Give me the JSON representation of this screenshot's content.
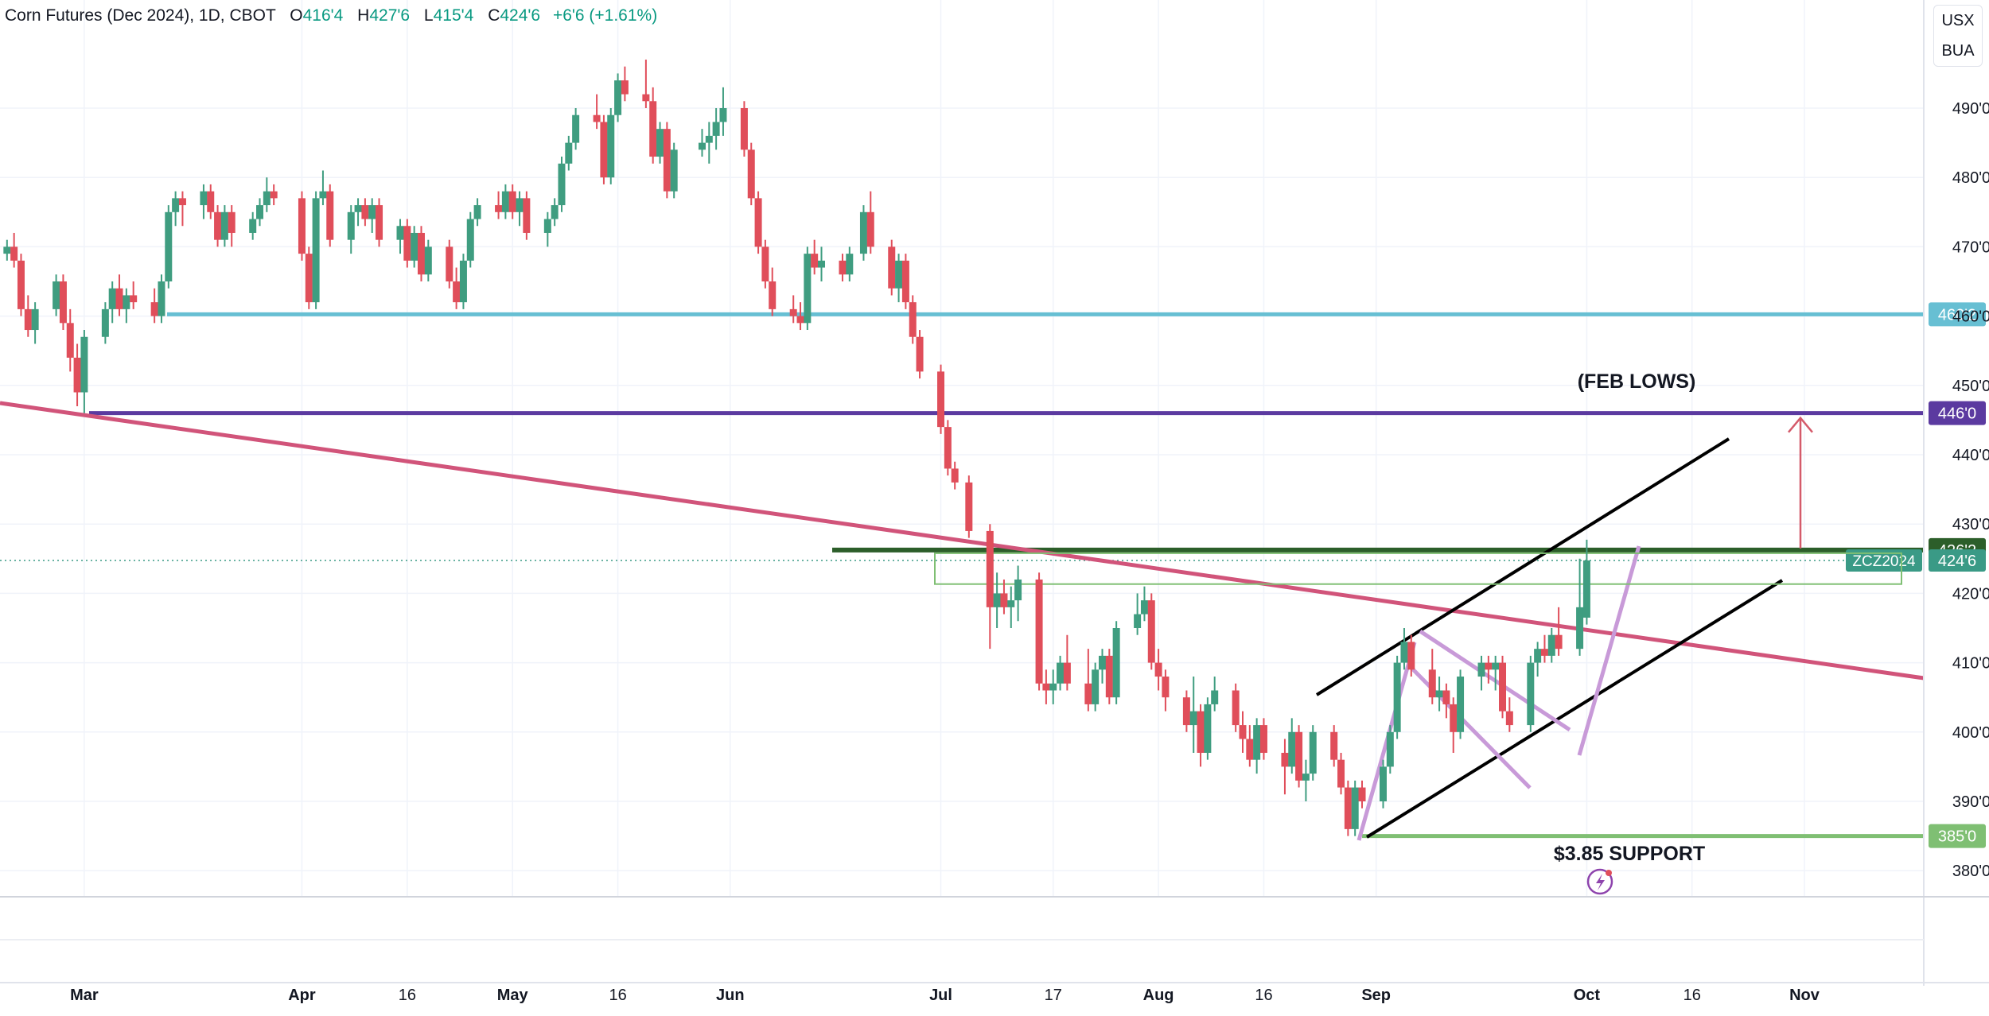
{
  "header": {
    "symbol": "Corn Futures (Dec 2024), 1D, CBOT",
    "open_label": "O",
    "open": "416'4",
    "high_label": "H",
    "high": "427'6",
    "low_label": "L",
    "low": "415'4",
    "close_label": "C",
    "close": "424'6",
    "change": "+6'6 (+1.61%)"
  },
  "corner_buttons": [
    "USX",
    "BUA"
  ],
  "chart_data": {
    "type": "candlestick",
    "price_axis": {
      "ticks": [
        380,
        390,
        400,
        410,
        420,
        430,
        440,
        450,
        460,
        470,
        480,
        490
      ],
      "tick_labels": [
        "380'0",
        "390'0",
        "400'0",
        "410'0",
        "420'0",
        "430'0",
        "440'0",
        "450'0",
        "460'0",
        "470'0",
        "480'0",
        "490'0"
      ],
      "range": [
        377,
        500
      ]
    },
    "time_axis": {
      "range": [
        "2024-02-18",
        "2024-11-18"
      ],
      "ticks": [
        {
          "date": "2024-03-01",
          "label": "Mar",
          "bold": true
        },
        {
          "date": "2024-04-01",
          "label": "Apr",
          "bold": true
        },
        {
          "date": "2024-04-16",
          "label": "16",
          "bold": false
        },
        {
          "date": "2024-05-01",
          "label": "May",
          "bold": true
        },
        {
          "date": "2024-05-16",
          "label": "16",
          "bold": false
        },
        {
          "date": "2024-06-01",
          "label": "Jun",
          "bold": true
        },
        {
          "date": "2024-07-01",
          "label": "Jul",
          "bold": true
        },
        {
          "date": "2024-07-17",
          "label": "17",
          "bold": false
        },
        {
          "date": "2024-08-01",
          "label": "Aug",
          "bold": true
        },
        {
          "date": "2024-08-16",
          "label": "16",
          "bold": false
        },
        {
          "date": "2024-09-01",
          "label": "Sep",
          "bold": true
        },
        {
          "date": "2024-10-01",
          "label": "Oct",
          "bold": true
        },
        {
          "date": "2024-10-16",
          "label": "16",
          "bold": false
        },
        {
          "date": "2024-11-01",
          "label": "Nov",
          "bold": true
        }
      ]
    },
    "candles": [
      [
        "2024-02-19",
        469,
        471,
        468,
        470
      ],
      [
        "2024-02-20",
        470,
        472,
        467,
        468
      ],
      [
        "2024-02-21",
        468,
        469,
        460,
        461
      ],
      [
        "2024-02-22",
        461,
        463,
        457,
        458
      ],
      [
        "2024-02-23",
        458,
        462,
        456,
        461
      ],
      [
        "2024-02-26",
        461,
        466,
        460,
        465
      ],
      [
        "2024-02-27",
        465,
        466,
        458,
        459
      ],
      [
        "2024-02-28",
        459,
        461,
        452,
        454
      ],
      [
        "2024-02-29",
        454,
        456,
        447,
        449
      ],
      [
        "2024-03-01",
        449,
        458,
        446,
        457
      ],
      [
        "2024-03-04",
        457,
        462,
        456,
        461
      ],
      [
        "2024-03-05",
        461,
        465,
        459,
        464
      ],
      [
        "2024-03-06",
        464,
        466,
        460,
        461
      ],
      [
        "2024-03-07",
        461,
        464,
        459,
        463
      ],
      [
        "2024-03-08",
        463,
        465,
        461,
        462
      ],
      [
        "2024-03-11",
        462,
        464,
        459,
        460
      ],
      [
        "2024-03-12",
        460,
        466,
        459,
        465
      ],
      [
        "2024-03-13",
        465,
        476,
        464,
        475
      ],
      [
        "2024-03-14",
        475,
        478,
        473,
        477
      ],
      [
        "2024-03-15",
        477,
        478,
        473,
        476
      ],
      [
        "2024-03-18",
        476,
        479,
        474,
        478
      ],
      [
        "2024-03-19",
        478,
        479,
        474,
        475
      ],
      [
        "2024-03-20",
        475,
        476,
        470,
        471
      ],
      [
        "2024-03-21",
        471,
        476,
        470,
        475
      ],
      [
        "2024-03-22",
        475,
        476,
        470,
        472
      ],
      [
        "2024-03-25",
        472,
        475,
        471,
        474
      ],
      [
        "2024-03-26",
        474,
        477,
        473,
        476
      ],
      [
        "2024-03-27",
        476,
        480,
        475,
        478
      ],
      [
        "2024-03-28",
        478,
        479,
        476,
        477
      ],
      [
        "2024-04-01",
        477,
        478,
        468,
        469
      ],
      [
        "2024-04-02",
        469,
        470,
        461,
        462
      ],
      [
        "2024-04-03",
        462,
        478,
        461,
        477
      ],
      [
        "2024-04-04",
        477,
        481,
        476,
        478
      ],
      [
        "2024-04-05",
        478,
        479,
        470,
        471
      ],
      [
        "2024-04-08",
        471,
        476,
        469,
        475
      ],
      [
        "2024-04-09",
        475,
        477,
        473,
        476
      ],
      [
        "2024-04-10",
        476,
        477,
        473,
        474
      ],
      [
        "2024-04-11",
        474,
        477,
        472,
        476
      ],
      [
        "2024-04-12",
        476,
        477,
        470,
        471
      ],
      [
        "2024-04-15",
        471,
        474,
        469,
        473
      ],
      [
        "2024-04-16",
        473,
        474,
        467,
        468
      ],
      [
        "2024-04-17",
        468,
        473,
        467,
        472
      ],
      [
        "2024-04-18",
        472,
        473,
        465,
        466
      ],
      [
        "2024-04-19",
        466,
        471,
        465,
        470
      ],
      [
        "2024-04-22",
        470,
        471,
        464,
        465
      ],
      [
        "2024-04-23",
        465,
        467,
        461,
        462
      ],
      [
        "2024-04-24",
        462,
        469,
        461,
        468
      ],
      [
        "2024-04-25",
        468,
        475,
        467,
        474
      ],
      [
        "2024-04-26",
        474,
        477,
        473,
        476
      ],
      [
        "2024-04-29",
        476,
        478,
        474,
        475
      ],
      [
        "2024-04-30",
        475,
        479,
        474,
        478
      ],
      [
        "2024-05-01",
        478,
        479,
        474,
        475
      ],
      [
        "2024-05-02",
        475,
        478,
        473,
        477
      ],
      [
        "2024-05-03",
        477,
        478,
        471,
        472
      ],
      [
        "2024-05-06",
        472,
        475,
        470,
        474
      ],
      [
        "2024-05-07",
        474,
        477,
        473,
        476
      ],
      [
        "2024-05-08",
        476,
        483,
        475,
        482
      ],
      [
        "2024-05-09",
        482,
        486,
        481,
        485
      ],
      [
        "2024-05-10",
        485,
        490,
        484,
        489
      ],
      [
        "2024-05-13",
        489,
        492,
        487,
        488
      ],
      [
        "2024-05-14",
        488,
        489,
        479,
        480
      ],
      [
        "2024-05-15",
        480,
        490,
        479,
        489
      ],
      [
        "2024-05-16",
        489,
        495,
        488,
        494
      ],
      [
        "2024-05-17",
        494,
        496,
        491,
        492
      ],
      [
        "2024-05-20",
        492,
        497,
        490,
        491
      ],
      [
        "2024-05-21",
        491,
        493,
        482,
        483
      ],
      [
        "2024-05-22",
        483,
        488,
        482,
        487
      ],
      [
        "2024-05-23",
        487,
        488,
        477,
        478
      ],
      [
        "2024-05-24",
        478,
        485,
        477,
        484
      ],
      [
        "2024-05-28",
        484,
        487,
        483,
        485
      ],
      [
        "2024-05-29",
        485,
        488,
        482,
        486
      ],
      [
        "2024-05-30",
        486,
        490,
        484,
        488
      ],
      [
        "2024-05-31",
        488,
        493,
        486,
        490
      ],
      [
        "2024-06-03",
        490,
        491,
        483,
        484
      ],
      [
        "2024-06-04",
        484,
        485,
        476,
        477
      ],
      [
        "2024-06-05",
        477,
        478,
        469,
        470
      ],
      [
        "2024-06-06",
        470,
        471,
        464,
        465
      ],
      [
        "2024-06-07",
        465,
        467,
        460,
        461
      ],
      [
        "2024-06-10",
        461,
        463,
        459,
        460
      ],
      [
        "2024-06-11",
        460,
        462,
        458,
        459
      ],
      [
        "2024-06-12",
        459,
        470,
        458,
        469
      ],
      [
        "2024-06-13",
        469,
        471,
        466,
        467
      ],
      [
        "2024-06-14",
        467,
        470,
        465,
        468
      ],
      [
        "2024-06-17",
        468,
        469,
        465,
        466
      ],
      [
        "2024-06-18",
        466,
        470,
        465,
        469
      ],
      [
        "2024-06-20",
        469,
        476,
        468,
        475
      ],
      [
        "2024-06-21",
        475,
        478,
        469,
        470
      ],
      [
        "2024-06-24",
        470,
        471,
        463,
        464
      ],
      [
        "2024-06-25",
        464,
        469,
        462,
        468
      ],
      [
        "2024-06-26",
        468,
        469,
        461,
        462
      ],
      [
        "2024-06-27",
        462,
        463,
        456,
        457
      ],
      [
        "2024-06-28",
        457,
        458,
        451,
        452
      ],
      [
        "2024-07-01",
        452,
        453,
        443,
        444
      ],
      [
        "2024-07-02",
        444,
        445,
        437,
        438
      ],
      [
        "2024-07-03",
        438,
        439,
        435,
        436
      ],
      [
        "2024-07-05",
        436,
        437,
        428,
        429
      ],
      [
        "2024-07-08",
        429,
        430,
        412,
        418
      ],
      [
        "2024-07-09",
        418,
        423,
        415,
        420
      ],
      [
        "2024-07-10",
        420,
        422,
        417,
        418
      ],
      [
        "2024-07-11",
        418,
        421,
        415,
        419
      ],
      [
        "2024-07-12",
        419,
        424,
        416,
        422
      ],
      [
        "2024-07-15",
        422,
        423,
        406,
        407
      ],
      [
        "2024-07-16",
        407,
        409,
        404,
        406
      ],
      [
        "2024-07-17",
        406,
        409,
        404,
        407
      ],
      [
        "2024-07-18",
        407,
        411,
        406,
        410
      ],
      [
        "2024-07-19",
        410,
        414,
        406,
        407
      ],
      [
        "2024-07-22",
        407,
        412,
        403,
        404
      ],
      [
        "2024-07-23",
        404,
        410,
        403,
        409
      ],
      [
        "2024-07-24",
        409,
        412,
        407,
        411
      ],
      [
        "2024-07-25",
        411,
        412,
        404,
        405
      ],
      [
        "2024-07-26",
        405,
        416,
        404,
        415
      ],
      [
        "2024-07-29",
        415,
        420,
        414,
        417
      ],
      [
        "2024-07-30",
        417,
        421,
        416,
        419
      ],
      [
        "2024-07-31",
        419,
        420,
        409,
        410
      ],
      [
        "2024-08-01",
        410,
        412,
        406,
        408
      ],
      [
        "2024-08-02",
        408,
        409,
        403,
        405
      ],
      [
        "2024-08-05",
        405,
        406,
        400,
        401
      ],
      [
        "2024-08-06",
        401,
        408,
        397,
        403
      ],
      [
        "2024-08-07",
        403,
        404,
        395,
        397
      ],
      [
        "2024-08-08",
        397,
        405,
        396,
        404
      ],
      [
        "2024-08-09",
        404,
        408,
        403,
        406
      ],
      [
        "2024-08-12",
        406,
        407,
        400,
        401
      ],
      [
        "2024-08-13",
        401,
        403,
        397,
        399
      ],
      [
        "2024-08-14",
        399,
        401,
        395,
        396
      ],
      [
        "2024-08-15",
        396,
        402,
        394,
        401
      ],
      [
        "2024-08-16",
        401,
        402,
        396,
        397
      ],
      [
        "2024-08-19",
        397,
        399,
        391,
        395
      ],
      [
        "2024-08-20",
        395,
        402,
        394,
        400
      ],
      [
        "2024-08-21",
        400,
        401,
        392,
        393
      ],
      [
        "2024-08-22",
        393,
        396,
        390,
        394
      ],
      [
        "2024-08-23",
        394,
        401,
        393,
        400
      ],
      [
        "2024-08-26",
        400,
        401,
        395,
        396
      ],
      [
        "2024-08-27",
        396,
        397,
        391,
        392
      ],
      [
        "2024-08-28",
        392,
        393,
        385,
        386
      ],
      [
        "2024-08-29",
        386,
        393,
        385,
        392
      ],
      [
        "2024-08-30",
        392,
        393,
        389,
        390
      ],
      [
        "2024-09-02",
        390,
        396,
        389,
        395
      ],
      [
        "2024-09-03",
        395,
        401,
        394,
        400
      ],
      [
        "2024-09-04",
        400,
        411,
        399,
        410
      ],
      [
        "2024-09-05",
        410,
        415,
        409,
        413
      ],
      [
        "2024-09-06",
        413,
        414,
        408,
        409
      ],
      [
        "2024-09-09",
        409,
        412,
        404,
        405
      ],
      [
        "2024-09-10",
        405,
        408,
        403,
        406
      ],
      [
        "2024-09-11",
        406,
        407,
        402,
        404
      ],
      [
        "2024-09-12",
        404,
        405,
        397,
        400
      ],
      [
        "2024-09-13",
        400,
        409,
        399,
        408
      ],
      [
        "2024-09-16",
        408,
        411,
        406,
        410
      ],
      [
        "2024-09-17",
        410,
        411,
        407,
        409
      ],
      [
        "2024-09-18",
        409,
        411,
        406,
        410
      ],
      [
        "2024-09-19",
        410,
        411,
        402,
        403
      ],
      [
        "2024-09-20",
        403,
        405,
        400,
        401
      ],
      [
        "2024-09-23",
        401,
        411,
        400,
        410
      ],
      [
        "2024-09-24",
        410,
        413,
        408,
        412
      ],
      [
        "2024-09-25",
        412,
        414,
        410,
        411
      ],
      [
        "2024-09-26",
        411,
        415,
        410,
        414
      ],
      [
        "2024-09-27",
        414,
        418,
        411,
        412
      ],
      [
        "2024-09-30",
        412,
        425,
        411,
        418
      ],
      [
        "2024-10-01",
        416.5,
        427.75,
        415.5,
        424.75
      ]
    ],
    "horizontal_levels": [
      {
        "price": 460.25,
        "label": "460'2",
        "color": "#67bfd3"
      },
      {
        "price": 446,
        "label": "446'0",
        "color": "#5b3aa0"
      },
      {
        "price": 426.25,
        "label": "426'2",
        "color": "#2c5e2a"
      },
      {
        "price": 385,
        "label": "385'0",
        "color": "#7fbf73"
      }
    ],
    "current_price": {
      "price": 424.75,
      "label": "424'6",
      "symbol": "ZCZ2024",
      "color": "#3a9a86"
    },
    "annotations": [
      {
        "text": "(FEB LOWS)"
      },
      {
        "text": "$3.85 SUPPORT"
      }
    ],
    "colors": {
      "up": "#3f9d80",
      "down": "#e04e5a",
      "trendline": "#d1547a",
      "channel": "#000000",
      "flags": "#c89ad8"
    }
  }
}
